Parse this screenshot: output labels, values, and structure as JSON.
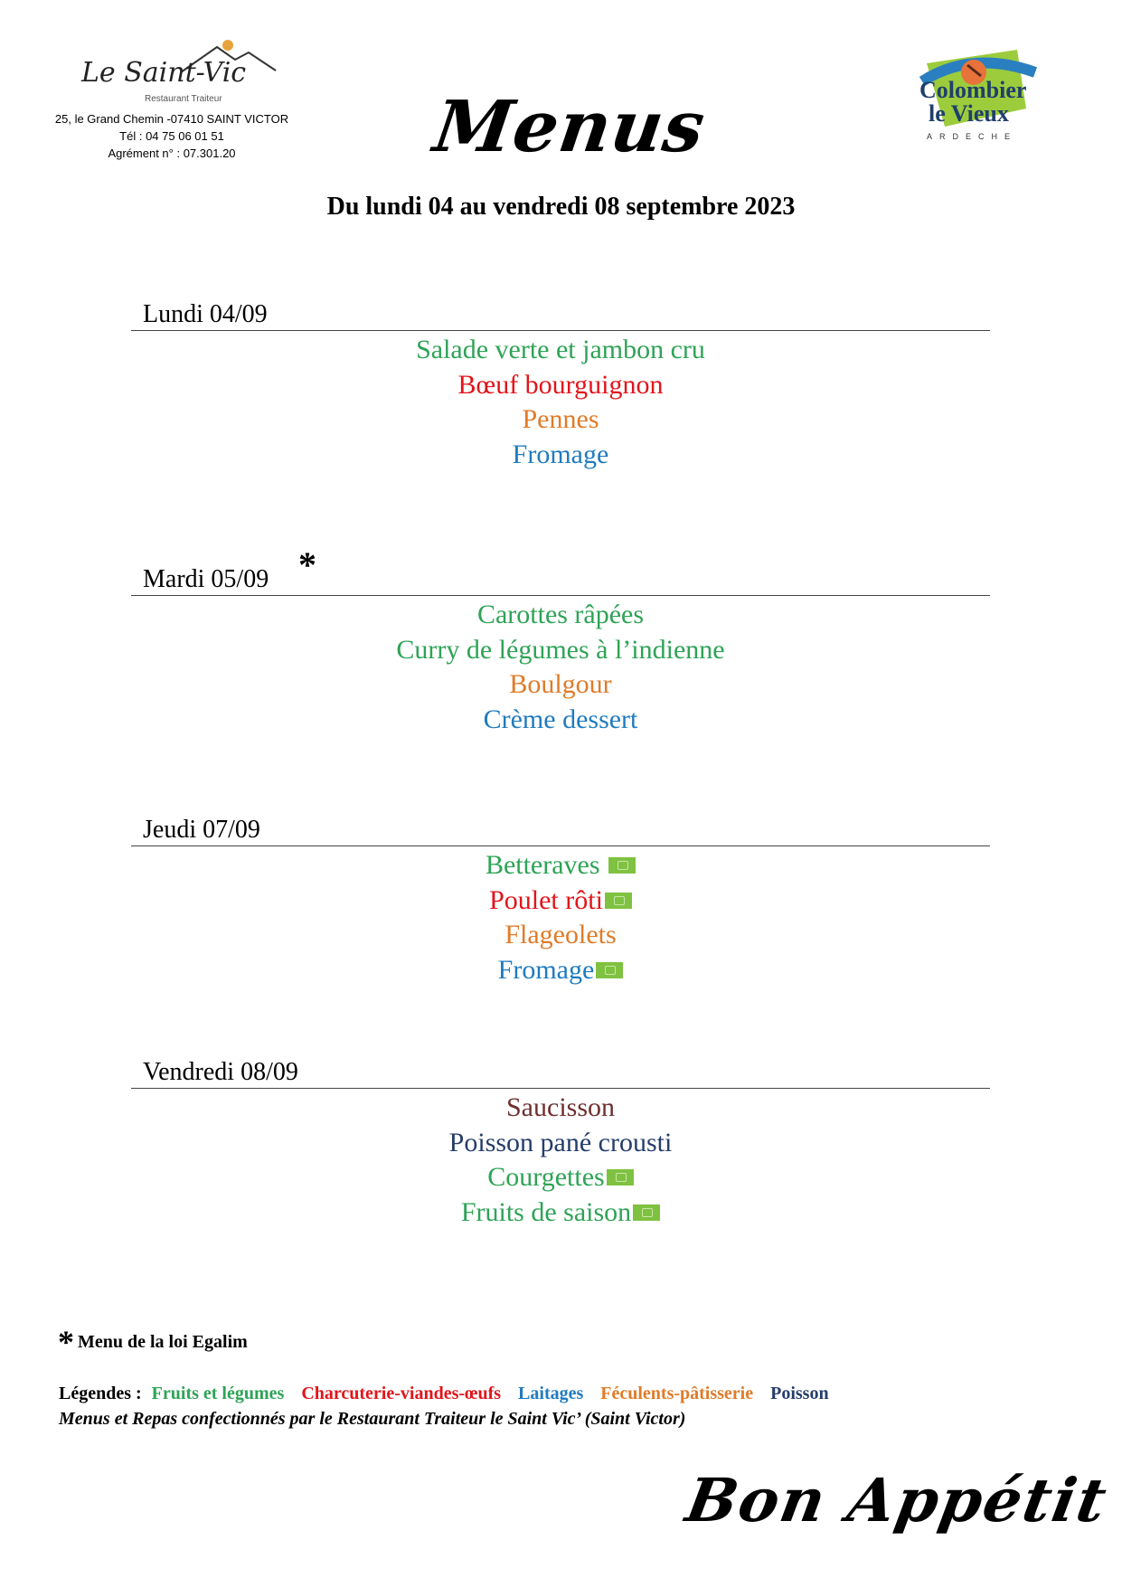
{
  "header": {
    "logo_left_text": "Le Saint-Vic",
    "logo_left_sub": "Restaurant Traiteur",
    "address_lines": [
      "25, le Grand Chemin -07410 SAINT VICTOR",
      "Tél : 04 75 06 01 51",
      "Agrément n° : 07.301.20"
    ],
    "title": "Menus",
    "logo_right_lines": [
      "Colombier",
      "le Vieux",
      "ARDECHE"
    ],
    "subtitle": "Du lundi 04 au vendredi 08 septembre 2023"
  },
  "colors": {
    "vegetables": "#2ea356",
    "meat": "#e2141b",
    "dairy": "#1f7bbf",
    "starch": "#e07b28",
    "fish": "#253d6b",
    "charcuterie_brown": "#6e2f2f",
    "bio_badge": "#7fc241"
  },
  "days": [
    {
      "name": "Lundi 04/09",
      "star": "",
      "items": [
        {
          "text": "Salade verte et jambon cru",
          "color": "#2ea356",
          "bio": false
        },
        {
          "text": "Bœuf bourguignon",
          "color": "#e2141b",
          "bio": false
        },
        {
          "text": "Pennes",
          "color": "#e07b28",
          "bio": false
        },
        {
          "text": "Fromage",
          "color": "#1f7bbf",
          "bio": false
        }
      ]
    },
    {
      "name": "Mardi 05/09",
      "star": "*",
      "items": [
        {
          "text": "Carottes râpées",
          "color": "#2ea356",
          "bio": false
        },
        {
          "text": "Curry de légumes à l’indienne",
          "color": "#2ea356",
          "bio": false
        },
        {
          "text": "Boulgour",
          "color": "#e07b28",
          "bio": false
        },
        {
          "text": "Crème dessert",
          "color": "#1f7bbf",
          "bio": false
        }
      ]
    },
    {
      "name": "Jeudi 07/09",
      "star": "",
      "items": [
        {
          "text": "Betteraves",
          "color": "#2ea356",
          "bio": true
        },
        {
          "text": "Poulet rôti",
          "color": "#e2141b",
          "bio": true
        },
        {
          "text": "Flageolets",
          "color": "#e07b28",
          "bio": false
        },
        {
          "text": "Fromage",
          "color": "#1f7bbf",
          "bio": true
        }
      ]
    },
    {
      "name": "Vendredi 08/09",
      "star": "",
      "items": [
        {
          "text": "Saucisson",
          "color": "#6e2f2f",
          "bio": false
        },
        {
          "text": "Poisson pané crousti",
          "color": "#253d6b",
          "bio": false
        },
        {
          "text": "Courgettes",
          "color": "#2ea356",
          "bio": true
        },
        {
          "text": "Fruits de saison",
          "color": "#2ea356",
          "bio": true
        }
      ]
    }
  ],
  "footer": {
    "egalim_star": "*",
    "egalim_text": "Menu de la loi Egalim",
    "legend_label": "Légendes :",
    "legend_items": [
      {
        "text": "Fruits et légumes",
        "color": "#2ea356"
      },
      {
        "text": "Charcuterie-viandes-œufs",
        "color": "#e2141b"
      },
      {
        "text": "Laitages",
        "color": "#1f7bbf"
      },
      {
        "text": "Féculents-pâtisserie",
        "color": "#e07b28"
      },
      {
        "text": "Poisson",
        "color": "#253d6b"
      }
    ],
    "credit": "Menus et Repas confectionnés par le Restaurant Traiteur le Saint Vic’ (Saint Victor)",
    "closing": "Bon Appétit !"
  }
}
